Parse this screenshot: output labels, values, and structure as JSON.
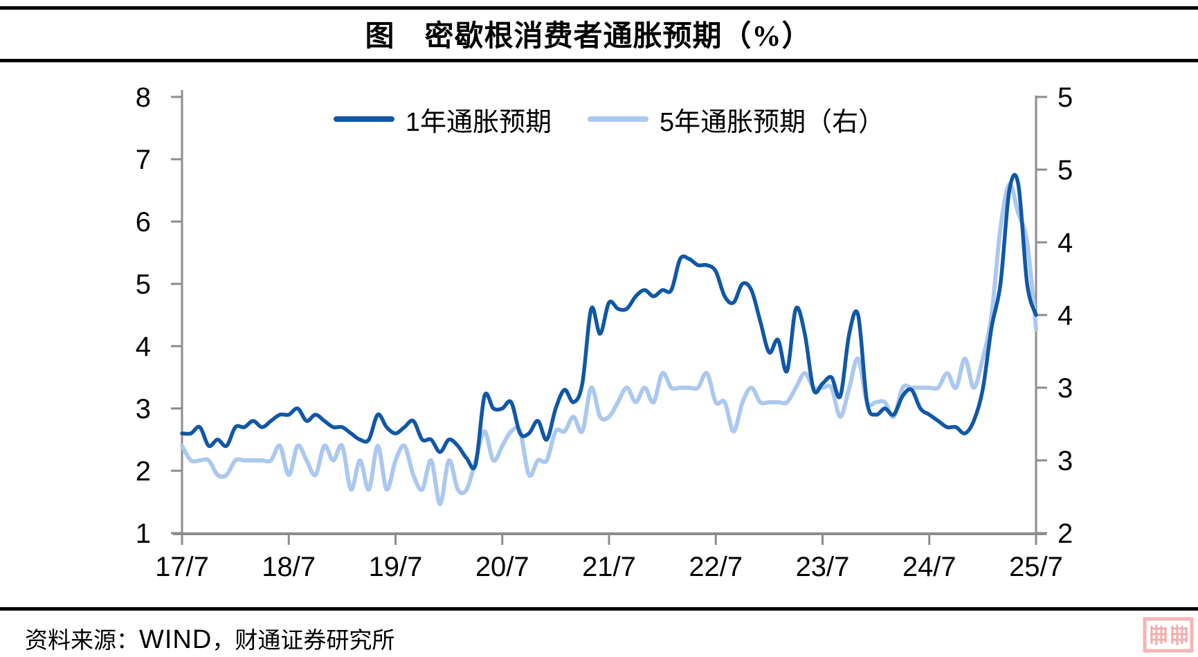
{
  "header": {
    "title": "图　密歇根消费者通胀预期（%）"
  },
  "footer": {
    "prefix": "资料来源：",
    "wind": "WIND",
    "rest": "，财通证券研究所"
  },
  "watermark": {
    "name": "pink-seal-stamp",
    "color": "#f5b6b6"
  },
  "colors": {
    "series_1y": "#1157a6",
    "series_5y": "#abc8ef",
    "axis": "#8c8c8c",
    "text": "#000000",
    "background": "#ffffff"
  },
  "chart_data": {
    "type": "line",
    "title": "图 密歇根消费者通胀预期（%）",
    "xlabel": "",
    "ylabel_left": "",
    "ylabel_right": "",
    "frequency": "monthly",
    "x_start": "2017-07",
    "x_end": "2025-07",
    "x_tick_labels": [
      "17/7",
      "18/7",
      "19/7",
      "20/7",
      "21/7",
      "22/7",
      "23/7",
      "24/7",
      "25/7"
    ],
    "left_axis": {
      "min": 1,
      "max": 8,
      "tick_labels": [
        "8",
        "7",
        "6",
        "5",
        "4",
        "3",
        "2",
        "1"
      ]
    },
    "right_axis": {
      "min": 2,
      "max": 5,
      "tick_labels": [
        "5",
        "5",
        "4",
        "4",
        "3",
        "3",
        "2"
      ]
    },
    "grid": false,
    "legend_position": "top-center",
    "series": [
      {
        "name": "1年通胀预期",
        "axis": "left",
        "color": "#1157a6",
        "values": [
          2.6,
          2.6,
          2.7,
          2.4,
          2.5,
          2.4,
          2.7,
          2.7,
          2.8,
          2.7,
          2.8,
          2.9,
          2.9,
          3.0,
          2.8,
          2.9,
          2.8,
          2.7,
          2.7,
          2.6,
          2.5,
          2.5,
          2.9,
          2.7,
          2.6,
          2.7,
          2.8,
          2.5,
          2.5,
          2.3,
          2.5,
          2.4,
          2.2,
          2.1,
          3.2,
          3.0,
          3.0,
          3.1,
          2.6,
          2.6,
          2.8,
          2.5,
          3.0,
          3.3,
          3.1,
          3.4,
          4.6,
          4.2,
          4.7,
          4.6,
          4.6,
          4.8,
          4.9,
          4.8,
          4.9,
          4.9,
          5.4,
          5.4,
          5.3,
          5.3,
          5.2,
          4.8,
          4.7,
          5.0,
          4.9,
          4.4,
          3.9,
          4.1,
          3.6,
          4.6,
          4.2,
          3.3,
          3.4,
          3.5,
          3.2,
          4.2,
          4.5,
          3.1,
          2.9,
          3.0,
          2.9,
          3.2,
          3.3,
          3.0,
          2.9,
          2.8,
          2.7,
          2.7,
          2.6,
          2.8,
          3.3,
          4.3,
          5.0,
          6.5,
          6.6,
          5.0,
          4.5
        ]
      },
      {
        "name": "5年通胀预期（右）",
        "axis": "right",
        "color": "#abc8ef",
        "values": [
          2.6,
          2.5,
          2.5,
          2.5,
          2.4,
          2.4,
          2.5,
          2.5,
          2.5,
          2.5,
          2.5,
          2.6,
          2.4,
          2.6,
          2.5,
          2.4,
          2.6,
          2.5,
          2.6,
          2.3,
          2.5,
          2.3,
          2.6,
          2.3,
          2.5,
          2.6,
          2.4,
          2.3,
          2.5,
          2.2,
          2.5,
          2.3,
          2.3,
          2.5,
          2.7,
          2.5,
          2.6,
          2.7,
          2.7,
          2.4,
          2.5,
          2.5,
          2.7,
          2.7,
          2.8,
          2.7,
          3.0,
          2.8,
          2.8,
          2.9,
          3.0,
          2.9,
          3.0,
          2.9,
          3.1,
          3.0,
          3.0,
          3.0,
          3.0,
          3.1,
          2.9,
          2.9,
          2.7,
          2.9,
          3.0,
          2.9,
          2.9,
          2.9,
          2.9,
          3.0,
          3.1,
          3.0,
          3.0,
          3.0,
          2.8,
          3.0,
          3.2,
          2.9,
          2.9,
          2.9,
          2.8,
          3.0,
          3.0,
          3.0,
          3.0,
          3.0,
          3.1,
          3.0,
          3.2,
          3.0,
          3.2,
          3.5,
          4.1,
          4.4,
          4.2,
          4.0,
          3.4
        ]
      }
    ]
  }
}
